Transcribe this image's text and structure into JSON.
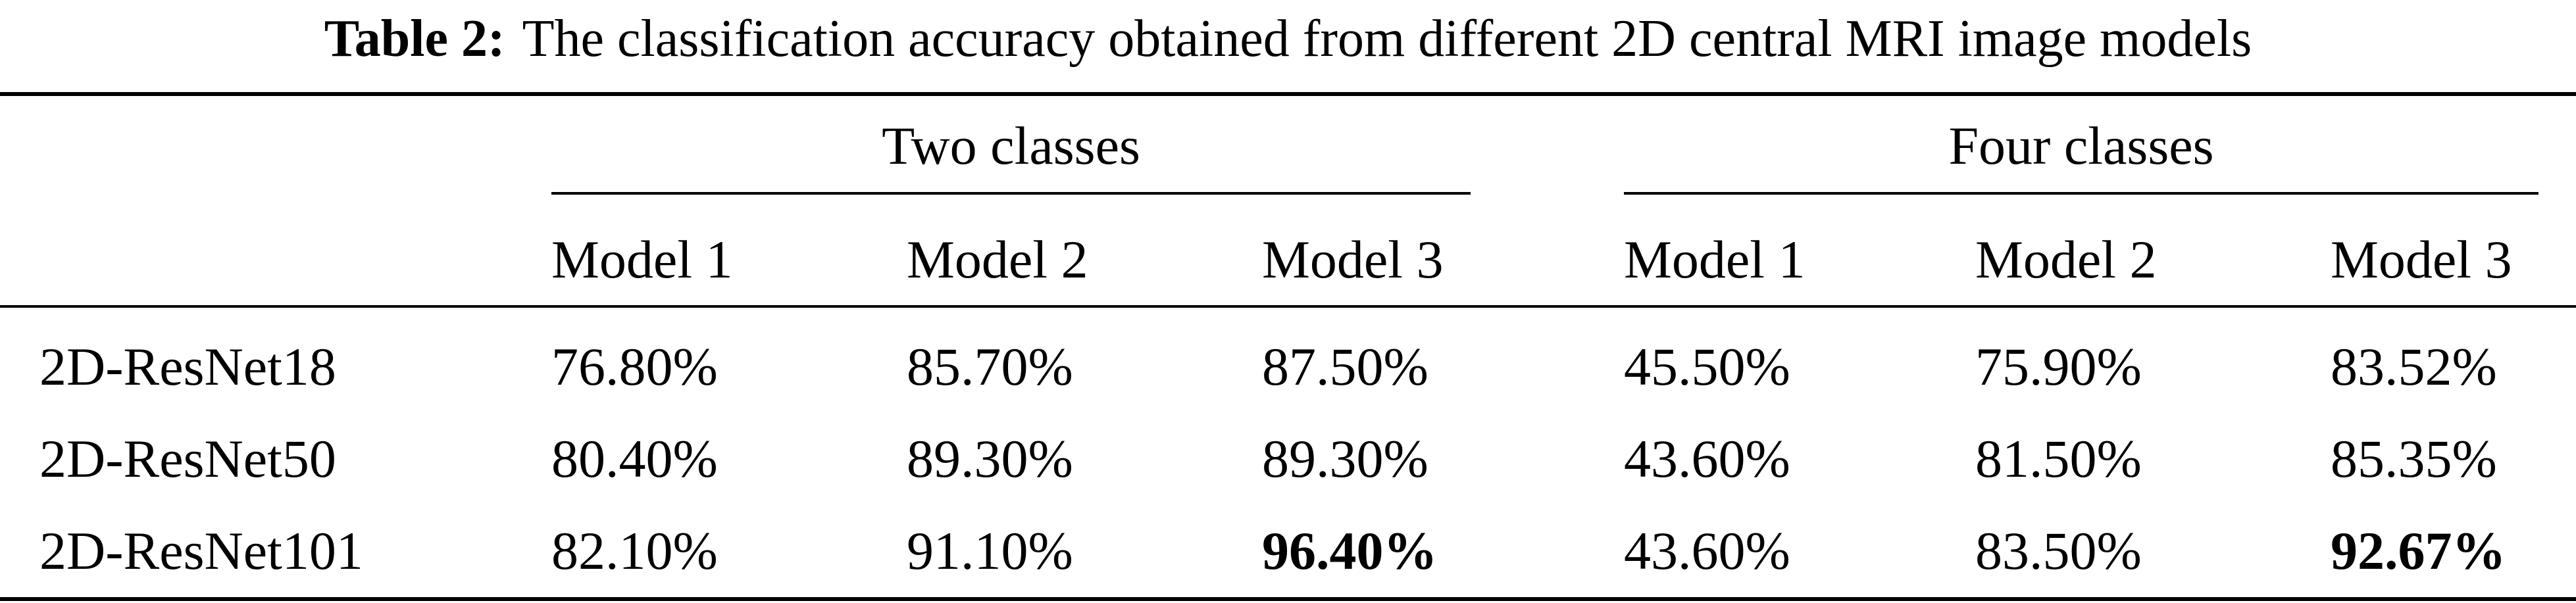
{
  "caption": {
    "label": "Table 2:",
    "text": "The classification accuracy obtained from different 2D central MRI image models"
  },
  "table": {
    "group_headers": [
      "Two classes",
      "Four classes"
    ],
    "column_headers": [
      "Model 1",
      "Model 2",
      "Model 3",
      "Model 1",
      "Model 2",
      "Model 3"
    ],
    "rows": [
      {
        "name": "2D-ResNet18",
        "values": [
          "76.80%",
          "85.70%",
          "87.50%",
          "45.50%",
          "75.90%",
          "83.52%"
        ]
      },
      {
        "name": "2D-ResNet50",
        "values": [
          "80.40%",
          "89.30%",
          "89.30%",
          "43.60%",
          "81.50%",
          "85.35%"
        ]
      },
      {
        "name": "2D-ResNet101",
        "values": [
          "82.10%",
          "91.10%",
          "96.40%",
          "43.60%",
          "83.50%",
          "92.67%"
        ]
      }
    ],
    "bold_cells": [
      "2.2",
      "2.5"
    ]
  }
}
